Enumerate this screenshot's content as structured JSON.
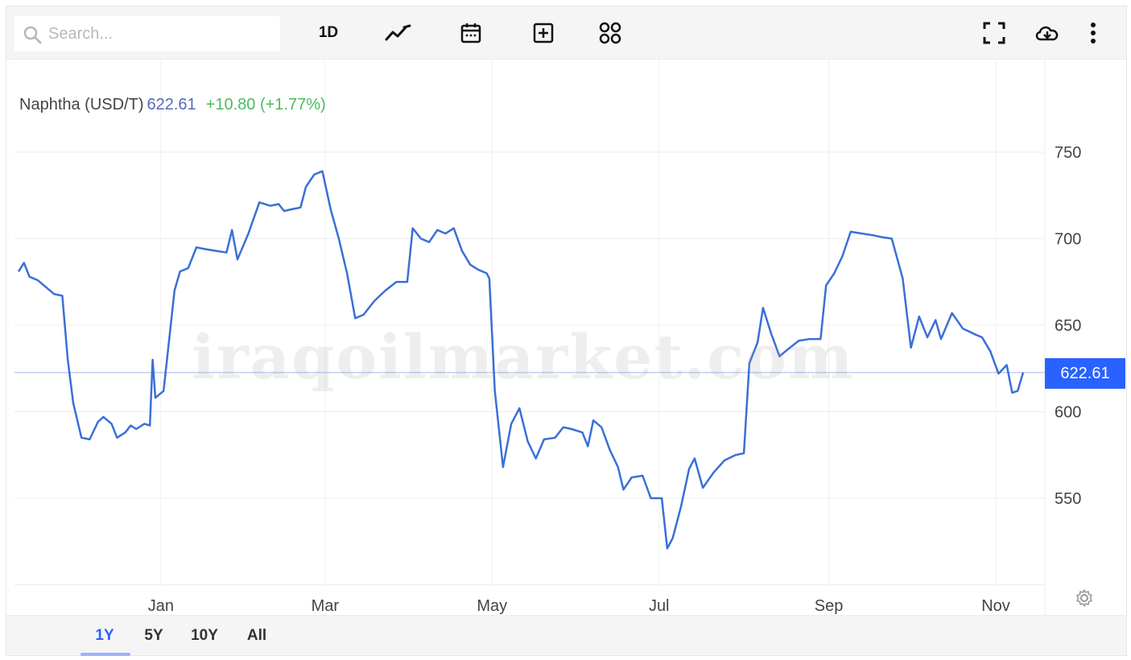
{
  "toolbar": {
    "search_placeholder": "Search...",
    "interval_label": "1D"
  },
  "legend": {
    "name": "Naphtha (USD/T)",
    "price": "622.61",
    "change": "+10.80 (+1.77%)"
  },
  "watermark": "iraqoilmarket.com",
  "price_tag": "622.61",
  "ranges": [
    "1Y",
    "5Y",
    "10Y",
    "All"
  ],
  "colors": {
    "line": "#3a6fd8",
    "accent": "#2962ff",
    "positive": "#4cbb5e",
    "price_text": "#5868b8"
  },
  "chart_data": {
    "type": "line",
    "title": "Naphtha (USD/T)",
    "xlabel": "",
    "ylabel": "",
    "x_ticks": [
      "Jan",
      "Mar",
      "May",
      "Jul",
      "Sep",
      "Nov"
    ],
    "y_ticks": [
      550,
      600,
      650,
      700,
      750
    ],
    "ylim": [
      500,
      770
    ],
    "grid": true,
    "current_price_line": 622.61,
    "series": [
      {
        "name": "Naphtha (USD/T)",
        "points": [
          [
            "2023-11-10",
            681
          ],
          [
            "2023-11-12",
            686
          ],
          [
            "2023-11-14",
            678
          ],
          [
            "2023-11-17",
            676
          ],
          [
            "2023-11-20",
            672
          ],
          [
            "2023-11-23",
            668
          ],
          [
            "2023-11-26",
            667
          ],
          [
            "2023-11-28",
            630
          ],
          [
            "2023-11-30",
            605
          ],
          [
            "2023-12-03",
            585
          ],
          [
            "2023-12-06",
            584
          ],
          [
            "2023-12-09",
            594
          ],
          [
            "2023-12-11",
            597
          ],
          [
            "2023-12-14",
            593
          ],
          [
            "2023-12-16",
            585
          ],
          [
            "2023-12-19",
            588
          ],
          [
            "2023-12-21",
            592
          ],
          [
            "2023-12-23",
            590
          ],
          [
            "2023-12-26",
            593
          ],
          [
            "2023-12-28",
            592
          ],
          [
            "2023-12-29",
            630
          ],
          [
            "2023-12-30",
            608
          ],
          [
            "2024-01-02",
            612
          ],
          [
            "2024-01-04",
            641
          ],
          [
            "2024-01-06",
            670
          ],
          [
            "2024-01-08",
            681
          ],
          [
            "2024-01-11",
            683
          ],
          [
            "2024-01-14",
            695
          ],
          [
            "2024-01-17",
            694
          ],
          [
            "2024-01-21",
            693
          ],
          [
            "2024-01-25",
            692
          ],
          [
            "2024-01-27",
            705
          ],
          [
            "2024-01-29",
            688
          ],
          [
            "2024-02-02",
            703
          ],
          [
            "2024-02-06",
            721
          ],
          [
            "2024-02-10",
            719
          ],
          [
            "2024-02-13",
            720
          ],
          [
            "2024-02-15",
            716
          ],
          [
            "2024-02-18",
            717
          ],
          [
            "2024-02-21",
            718
          ],
          [
            "2024-02-23",
            730
          ],
          [
            "2024-02-26",
            737
          ],
          [
            "2024-02-29",
            739
          ],
          [
            "2024-03-03",
            717
          ],
          [
            "2024-03-06",
            700
          ],
          [
            "2024-03-09",
            680
          ],
          [
            "2024-03-12",
            654
          ],
          [
            "2024-03-15",
            656
          ],
          [
            "2024-03-19",
            664
          ],
          [
            "2024-03-23",
            670
          ],
          [
            "2024-03-27",
            675
          ],
          [
            "2024-03-31",
            675
          ],
          [
            "2024-04-02",
            706
          ],
          [
            "2024-04-05",
            700
          ],
          [
            "2024-04-08",
            698
          ],
          [
            "2024-04-11",
            705
          ],
          [
            "2024-04-14",
            703
          ],
          [
            "2024-04-17",
            706
          ],
          [
            "2024-04-20",
            693
          ],
          [
            "2024-04-23",
            685
          ],
          [
            "2024-04-26",
            682
          ],
          [
            "2024-04-29",
            680
          ],
          [
            "2024-04-30",
            677
          ],
          [
            "2024-05-02",
            612
          ],
          [
            "2024-05-05",
            568
          ],
          [
            "2024-05-08",
            593
          ],
          [
            "2024-05-11",
            602
          ],
          [
            "2024-05-14",
            583
          ],
          [
            "2024-05-17",
            573
          ],
          [
            "2024-05-20",
            584
          ],
          [
            "2024-05-24",
            585
          ],
          [
            "2024-05-27",
            591
          ],
          [
            "2024-05-30",
            590
          ],
          [
            "2024-06-03",
            588
          ],
          [
            "2024-06-05",
            580
          ],
          [
            "2024-06-07",
            595
          ],
          [
            "2024-06-10",
            591
          ],
          [
            "2024-06-13",
            578
          ],
          [
            "2024-06-16",
            568
          ],
          [
            "2024-06-18",
            555
          ],
          [
            "2024-06-21",
            562
          ],
          [
            "2024-06-25",
            563
          ],
          [
            "2024-06-28",
            550
          ],
          [
            "2024-07-02",
            550
          ],
          [
            "2024-07-04",
            521
          ],
          [
            "2024-07-06",
            527
          ],
          [
            "2024-07-09",
            545
          ],
          [
            "2024-07-12",
            567
          ],
          [
            "2024-07-14",
            573
          ],
          [
            "2024-07-17",
            556
          ],
          [
            "2024-07-21",
            565
          ],
          [
            "2024-07-25",
            572
          ],
          [
            "2024-07-29",
            575
          ],
          [
            "2024-08-01",
            576
          ],
          [
            "2024-08-03",
            628
          ],
          [
            "2024-08-06",
            640
          ],
          [
            "2024-08-08",
            660
          ],
          [
            "2024-08-11",
            645
          ],
          [
            "2024-08-14",
            632
          ],
          [
            "2024-08-17",
            636
          ],
          [
            "2024-08-21",
            641
          ],
          [
            "2024-08-25",
            642
          ],
          [
            "2024-08-29",
            642
          ],
          [
            "2024-08-31",
            673
          ],
          [
            "2024-09-03",
            680
          ],
          [
            "2024-09-06",
            690
          ],
          [
            "2024-09-09",
            704
          ],
          [
            "2024-09-13",
            703
          ],
          [
            "2024-09-17",
            702
          ],
          [
            "2024-09-20",
            701
          ],
          [
            "2024-09-24",
            700
          ],
          [
            "2024-09-28",
            677
          ],
          [
            "2024-10-01",
            637
          ],
          [
            "2024-10-04",
            655
          ],
          [
            "2024-10-07",
            643
          ],
          [
            "2024-10-10",
            653
          ],
          [
            "2024-10-12",
            642
          ],
          [
            "2024-10-16",
            657
          ],
          [
            "2024-10-20",
            648
          ],
          [
            "2024-10-24",
            645
          ],
          [
            "2024-10-27",
            643
          ],
          [
            "2024-10-30",
            635
          ],
          [
            "2024-11-02",
            622
          ],
          [
            "2024-11-05",
            627
          ],
          [
            "2024-11-07",
            611
          ],
          [
            "2024-11-09",
            612
          ],
          [
            "2024-11-11",
            622.61
          ]
        ]
      }
    ]
  }
}
